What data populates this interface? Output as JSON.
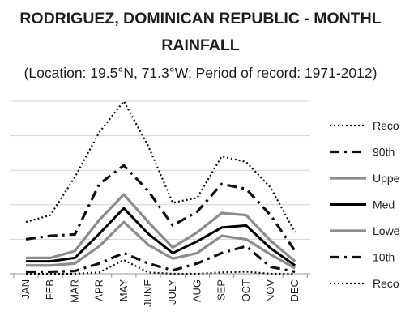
{
  "title_line1": "RODRIGUEZ, DOMINICAN REPUBLIC - MONTHL",
  "title_line2": "RAINFALL",
  "subtitle": "(Location: 19.5°N, 71.3°W; Period of record: 1971-2012)",
  "chart_data": {
    "type": "line",
    "categories": [
      "JAN",
      "FEB",
      "MAR",
      "APR",
      "MAY",
      "JUNE",
      "JULY",
      "AUG",
      "SEP",
      "OCT",
      "NOV",
      "DEC"
    ],
    "ylim": [
      0,
      250
    ],
    "grid": true,
    "legend_position": "right",
    "series": [
      {
        "name": "Reco",
        "style": "dotted",
        "color": "#111111",
        "values": [
          75,
          85,
          140,
          205,
          250,
          185,
          103,
          110,
          170,
          162,
          125,
          60
        ]
      },
      {
        "name": "90th",
        "style": "dashdot",
        "color": "#111111",
        "values": [
          50,
          55,
          57,
          130,
          157,
          120,
          70,
          90,
          130,
          123,
          85,
          33
        ]
      },
      {
        "name": "Uppe",
        "style": "solid",
        "color": "#8c8c8c",
        "values": [
          23,
          23,
          33,
          78,
          115,
          75,
          38,
          60,
          88,
          85,
          48,
          18
        ]
      },
      {
        "name": "Med",
        "style": "solid",
        "color": "#000000",
        "values": [
          18,
          18,
          23,
          58,
          95,
          58,
          30,
          47,
          67,
          70,
          37,
          12
        ]
      },
      {
        "name": "Lowe",
        "style": "solid",
        "color": "#8c8c8c",
        "values": [
          12,
          12,
          15,
          40,
          75,
          42,
          22,
          30,
          55,
          50,
          28,
          8
        ]
      },
      {
        "name": "10th",
        "style": "dashdot",
        "color": "#111111",
        "values": [
          3,
          3,
          4,
          15,
          30,
          15,
          5,
          15,
          30,
          40,
          10,
          3
        ]
      },
      {
        "name": "Reco",
        "style": "dotted",
        "color": "#111111",
        "values": [
          0,
          0,
          0,
          2,
          20,
          2,
          0,
          0,
          2,
          3,
          0,
          0
        ]
      }
    ]
  }
}
